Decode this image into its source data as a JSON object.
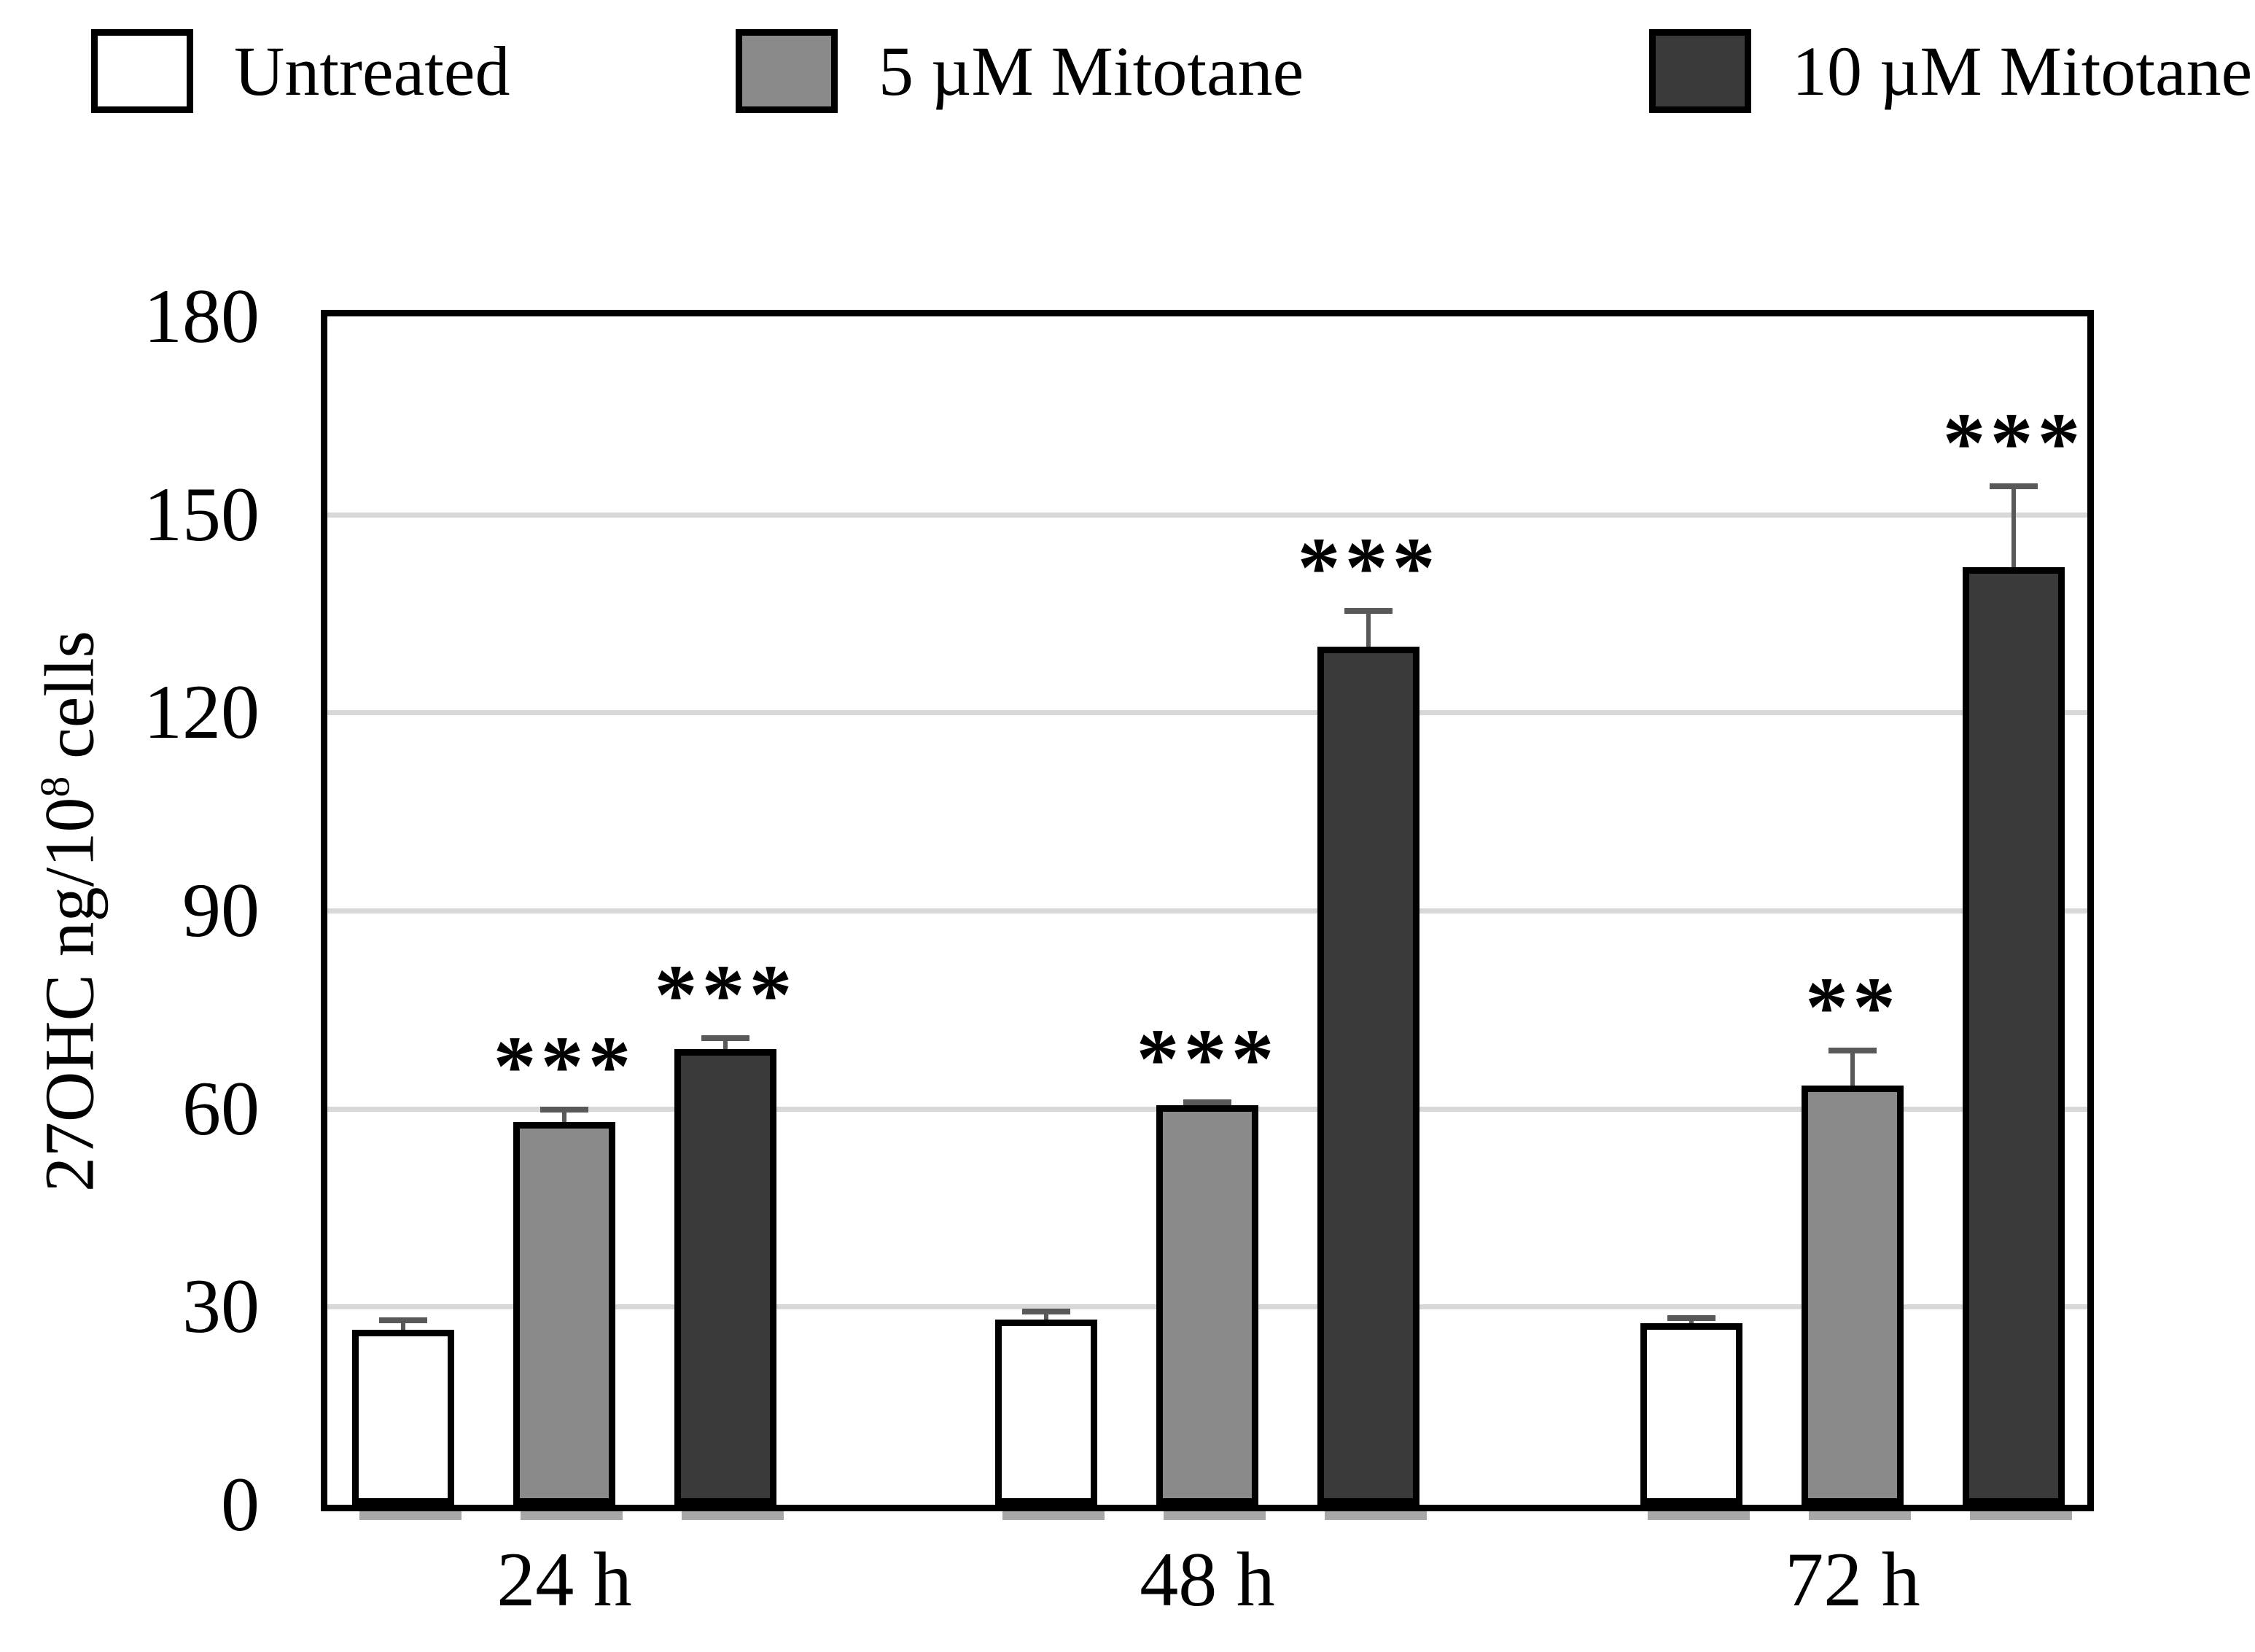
{
  "figure": {
    "kind": "grouped-bar-figure"
  },
  "legend": {
    "items": [
      {
        "label": "Untreated",
        "color": "#ffffff"
      },
      {
        "label": "5 µM Mitotane",
        "color": "#8a8a8a"
      },
      {
        "label": "10 µM Mitotane",
        "color": "#3a3a3a"
      }
    ]
  },
  "chart_data": {
    "type": "bar",
    "title": "",
    "categories": [
      "24 h",
      "48 h",
      "72 h"
    ],
    "series": [
      {
        "name": "Untreated",
        "color": "#ffffff",
        "values": [
          26.5,
          28,
          27.5
        ],
        "errors": [
          1.4,
          1.3,
          0.8
        ],
        "significance": [
          "",
          "",
          ""
        ]
      },
      {
        "name": "5 µM Mitotane",
        "color": "#8a8a8a",
        "values": [
          58,
          60.5,
          63.5
        ],
        "errors": [
          1.9,
          0.5,
          5.3
        ],
        "significance": [
          "***",
          "***",
          "**"
        ]
      },
      {
        "name": "10 µM Mitotane",
        "color": "#3a3a3a",
        "values": [
          69,
          130,
          142
        ],
        "errors": [
          1.7,
          5.4,
          12.3
        ],
        "significance": [
          "***",
          "***",
          "***"
        ]
      }
    ],
    "ylabel": {
      "prefix": "27OHC ng/10",
      "sup": "8",
      "suffix": " cells"
    },
    "yticks": [
      0,
      30,
      60,
      90,
      120,
      150,
      180
    ],
    "ylim": [
      0,
      180
    ],
    "grid": true,
    "grid_color": "#d8d8d8",
    "error_bar_color": "#595959",
    "bar_border_color": "#000000",
    "legend_position": "top"
  }
}
